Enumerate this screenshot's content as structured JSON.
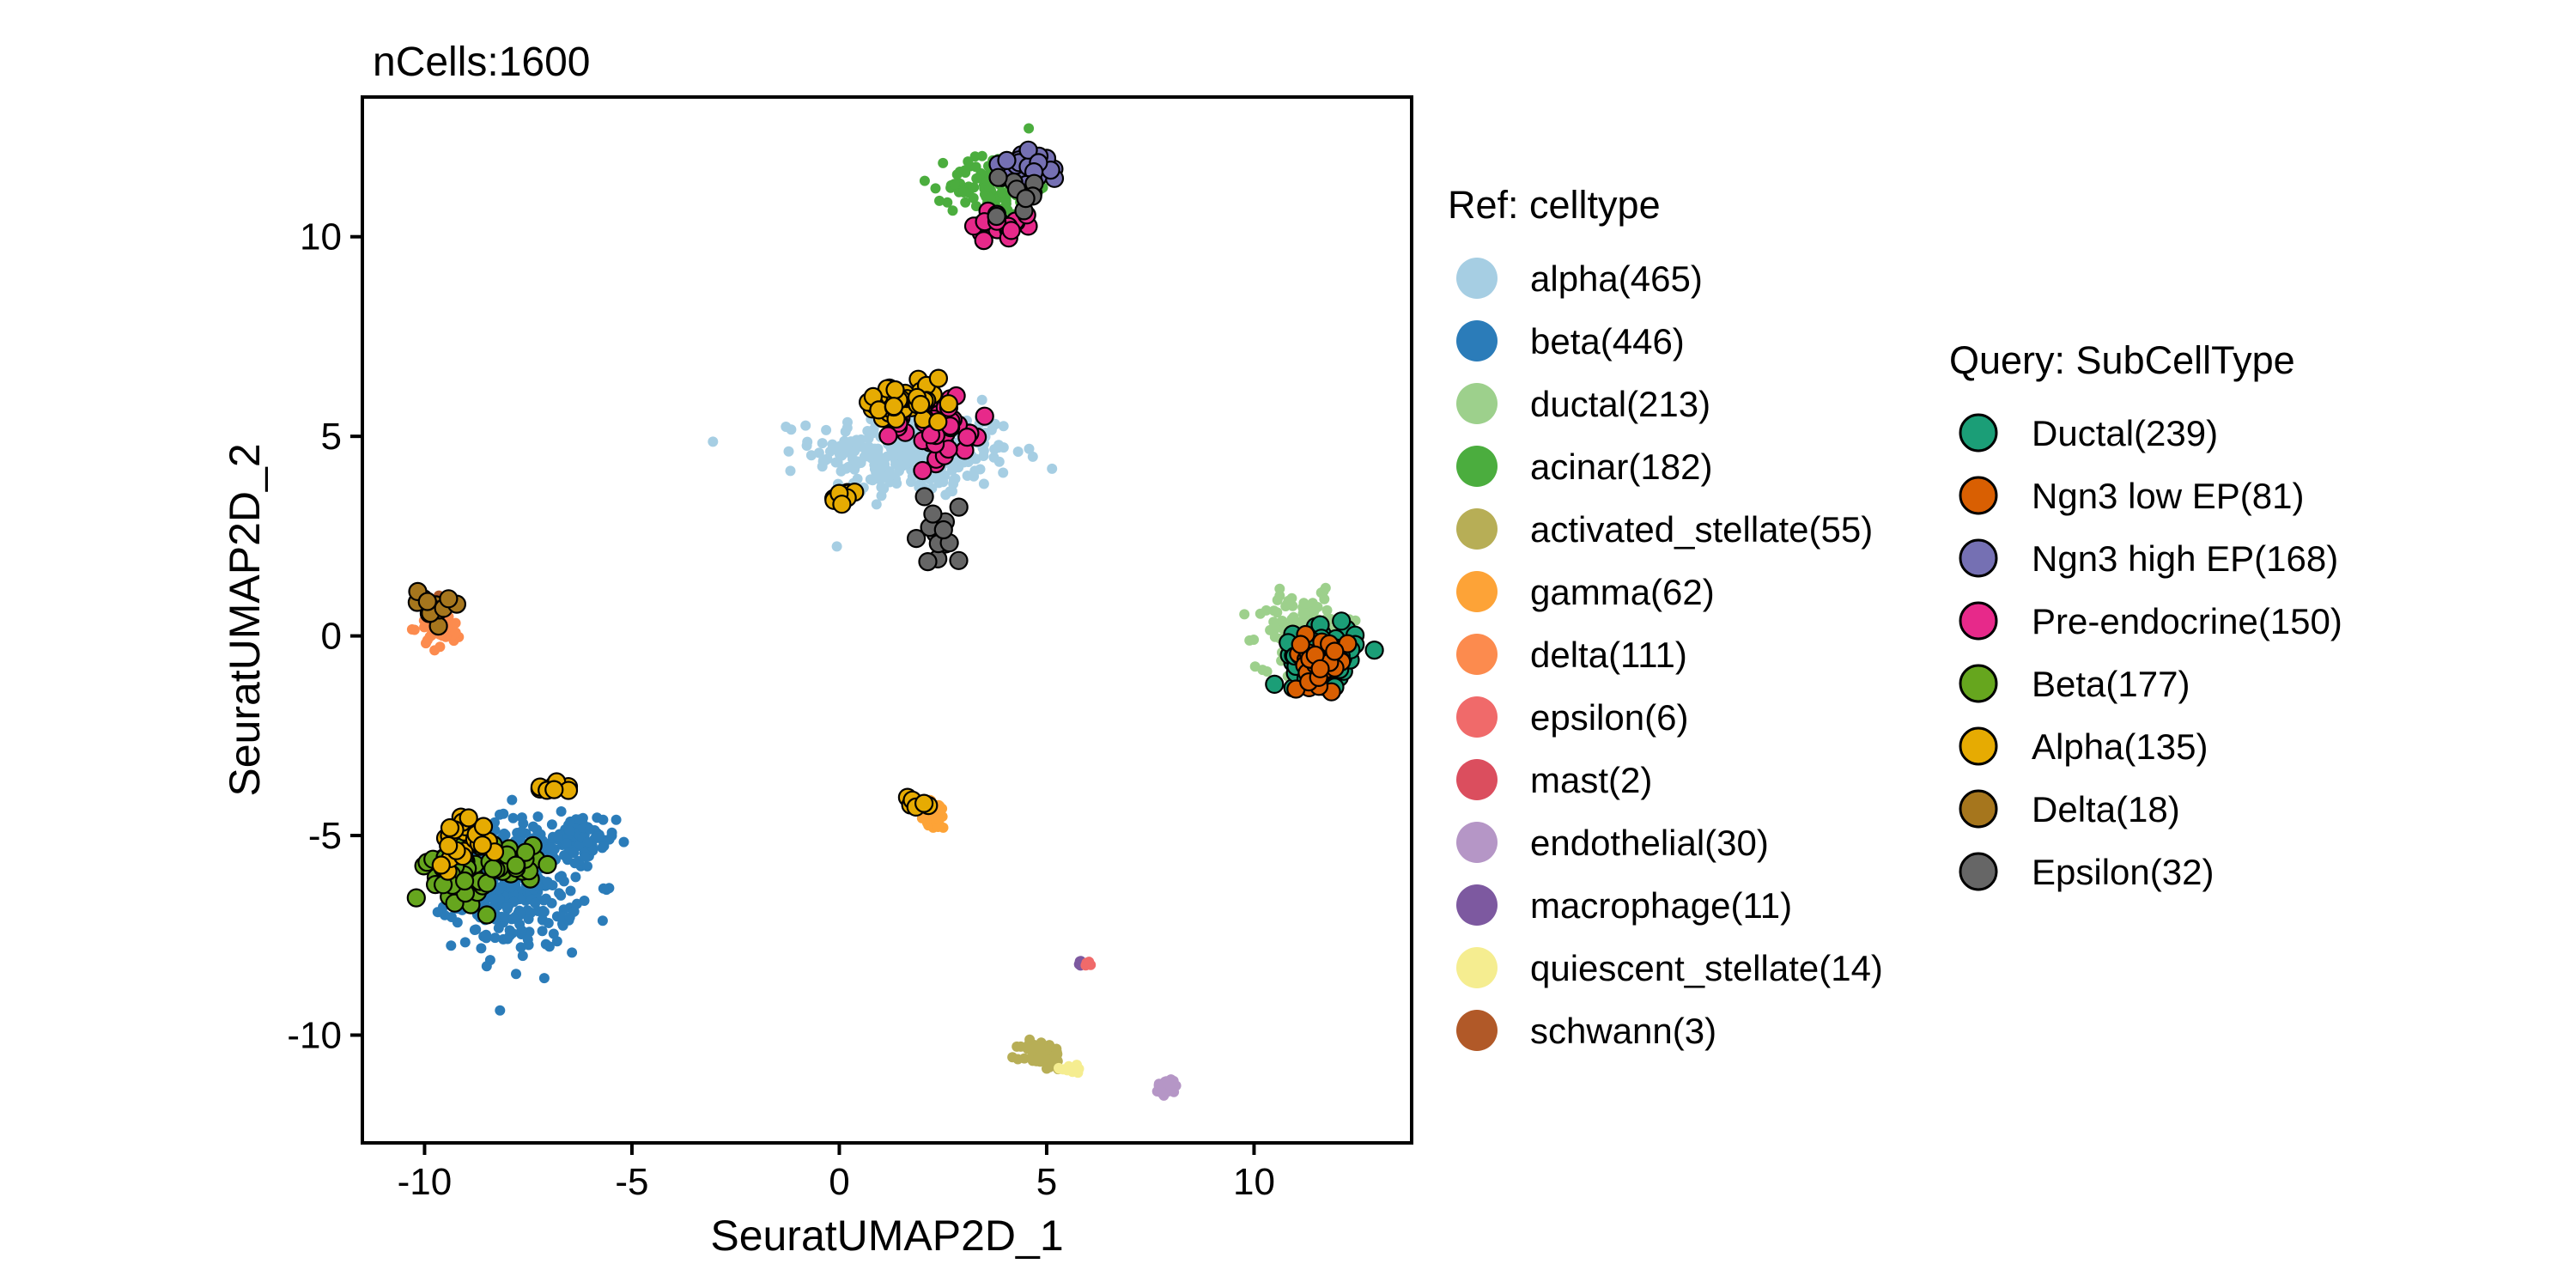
{
  "chart_data": {
    "type": "scatter",
    "title": "nCells:1600",
    "xlabel": "SeuratUMAP2D_1",
    "ylabel": "SeuratUMAP2D_2",
    "xlim": [
      -11.5,
      13.8
    ],
    "ylim": [
      -12.7,
      13.5
    ],
    "x_ticks": [
      -10,
      -5,
      0,
      5,
      10
    ],
    "y_ticks": [
      -10,
      -5,
      0,
      5,
      10
    ],
    "x_tick_labels": [
      "-10",
      "-5",
      "0",
      "5",
      "10"
    ],
    "y_tick_labels": [
      "-10",
      "-5",
      "0",
      "5",
      "10"
    ],
    "grid": false,
    "ref_legend": {
      "title": "Ref: celltype",
      "items": [
        {
          "label": "alpha(465)",
          "color": "#A6CEE3"
        },
        {
          "label": "beta(446)",
          "color": "#2B7CB9"
        },
        {
          "label": "ductal(213)",
          "color": "#9DD08C"
        },
        {
          "label": "acinar(182)",
          "color": "#4BAD3E"
        },
        {
          "label": "activated_stellate(55)",
          "color": "#B7AE56"
        },
        {
          "label": "gamma(62)",
          "color": "#FDA337"
        },
        {
          "label": "delta(111)",
          "color": "#FC8B4E"
        },
        {
          "label": "epsilon(6)",
          "color": "#F06A6A"
        },
        {
          "label": "mast(2)",
          "color": "#DB4E5E"
        },
        {
          "label": "endothelial(30)",
          "color": "#B596C6"
        },
        {
          "label": "macrophage(11)",
          "color": "#7D59A0"
        },
        {
          "label": "quiescent_stellate(14)",
          "color": "#F5ED90"
        },
        {
          "label": "schwann(3)",
          "color": "#B15928"
        }
      ]
    },
    "query_legend": {
      "title": "Query: SubCellType",
      "items": [
        {
          "label": "Ductal(239)",
          "color": "#1B9E77"
        },
        {
          "label": "Ngn3 low EP(81)",
          "color": "#D95F02"
        },
        {
          "label": "Ngn3 high EP(168)",
          "color": "#7570B3"
        },
        {
          "label": "Pre-endocrine(150)",
          "color": "#E7298A"
        },
        {
          "label": "Beta(177)",
          "color": "#66A61E"
        },
        {
          "label": "Alpha(135)",
          "color": "#E6AB02"
        },
        {
          "label": "Delta(18)",
          "color": "#A6761D"
        },
        {
          "label": "Epsilon(32)",
          "color": "#666666"
        }
      ]
    },
    "ref_clusters": [
      {
        "celltype": "alpha",
        "color": "#A6CEE3",
        "cx": 1.8,
        "cy": 4.6,
        "sx": 1.6,
        "sy": 0.75,
        "n": 330
      },
      {
        "celltype": "beta",
        "color": "#2B7CB9",
        "cx": -7.8,
        "cy": -6.2,
        "sx": 1.0,
        "sy": 1.1,
        "n": 330
      },
      {
        "celltype": "beta",
        "color": "#2B7CB9",
        "cx": -6.3,
        "cy": -5.2,
        "sx": 0.6,
        "sy": 0.5,
        "n": 60
      },
      {
        "celltype": "ductal",
        "color": "#9DD08C",
        "cx": 11.2,
        "cy": 0.1,
        "sx": 0.75,
        "sy": 0.6,
        "n": 150
      },
      {
        "celltype": "acinar",
        "color": "#4BAD3E",
        "cx": 3.7,
        "cy": 11.3,
        "sx": 0.7,
        "sy": 0.55,
        "n": 110
      },
      {
        "celltype": "activated_stellate",
        "color": "#B7AE56",
        "cx": 4.9,
        "cy": -10.5,
        "sx": 0.35,
        "sy": 0.25,
        "n": 45
      },
      {
        "celltype": "gamma",
        "color": "#FDA337",
        "cx": 2.3,
        "cy": -4.5,
        "sx": 0.25,
        "sy": 0.25,
        "n": 45
      },
      {
        "celltype": "delta",
        "color": "#FC8B4E",
        "cx": -9.6,
        "cy": 0.2,
        "sx": 0.35,
        "sy": 0.35,
        "n": 40
      },
      {
        "celltype": "endothelial",
        "color": "#B596C6",
        "cx": 7.9,
        "cy": -11.3,
        "sx": 0.18,
        "sy": 0.15,
        "n": 25
      },
      {
        "celltype": "macrophage",
        "color": "#7D59A0",
        "cx": 5.8,
        "cy": -8.2,
        "sx": 0.06,
        "sy": 0.06,
        "n": 6
      },
      {
        "celltype": "quiescent_stellate",
        "color": "#F5ED90",
        "cx": 5.6,
        "cy": -10.8,
        "sx": 0.25,
        "sy": 0.12,
        "n": 12
      },
      {
        "celltype": "epsilon",
        "color": "#F06A6A",
        "cx": 6.0,
        "cy": -8.2,
        "sx": 0.05,
        "sy": 0.05,
        "n": 4
      },
      {
        "celltype": "schwann",
        "color": "#B15928",
        "cx": -9.6,
        "cy": 1.0,
        "sx": 0.12,
        "sy": 0.12,
        "n": 3
      }
    ],
    "query_clusters": [
      {
        "subcelltype": "Ductal",
        "color": "#1B9E77",
        "cx": 11.7,
        "cy": -0.5,
        "sx": 0.5,
        "sy": 0.45,
        "n": 130
      },
      {
        "subcelltype": "Ngn3 low EP",
        "color": "#D95F02",
        "cx": 11.6,
        "cy": -0.6,
        "sx": 0.45,
        "sy": 0.4,
        "n": 35
      },
      {
        "subcelltype": "Ngn3 high EP",
        "color": "#7570B3",
        "cx": 4.5,
        "cy": 11.7,
        "sx": 0.4,
        "sy": 0.25,
        "n": 60
      },
      {
        "subcelltype": "Pre-endocrine",
        "color": "#E7298A",
        "cx": 2.3,
        "cy": 5.2,
        "sx": 0.9,
        "sy": 0.6,
        "n": 45
      },
      {
        "subcelltype": "Pre-endocrine",
        "color": "#E7298A",
        "cx": 4.0,
        "cy": 10.3,
        "sx": 0.5,
        "sy": 0.3,
        "n": 20
      },
      {
        "subcelltype": "Beta",
        "color": "#66A61E",
        "cx": -9.2,
        "cy": -5.8,
        "sx": 0.45,
        "sy": 0.55,
        "n": 70
      },
      {
        "subcelltype": "Beta",
        "color": "#66A61E",
        "cx": -7.9,
        "cy": -5.7,
        "sx": 0.4,
        "sy": 0.45,
        "n": 25
      },
      {
        "subcelltype": "Alpha",
        "color": "#E6AB02",
        "cx": 1.6,
        "cy": 5.8,
        "sx": 0.7,
        "sy": 0.35,
        "n": 45
      },
      {
        "subcelltype": "Alpha",
        "color": "#E6AB02",
        "cx": -9.0,
        "cy": -5.0,
        "sx": 0.5,
        "sy": 0.45,
        "n": 25
      },
      {
        "subcelltype": "Alpha",
        "color": "#E6AB02",
        "cx": 0.0,
        "cy": 3.4,
        "sx": 0.3,
        "sy": 0.15,
        "n": 8
      },
      {
        "subcelltype": "Alpha",
        "color": "#E6AB02",
        "cx": -6.8,
        "cy": -3.8,
        "sx": 0.3,
        "sy": 0.15,
        "n": 8
      },
      {
        "subcelltype": "Alpha",
        "color": "#E6AB02",
        "cx": 1.9,
        "cy": -4.2,
        "sx": 0.25,
        "sy": 0.15,
        "n": 6
      },
      {
        "subcelltype": "Delta",
        "color": "#A6761D",
        "cx": -9.8,
        "cy": 0.8,
        "sx": 0.3,
        "sy": 0.3,
        "n": 15
      },
      {
        "subcelltype": "Epsilon",
        "color": "#666666",
        "cx": 2.4,
        "cy": 2.6,
        "sx": 0.5,
        "sy": 0.5,
        "n": 14
      },
      {
        "subcelltype": "Epsilon",
        "color": "#666666",
        "cx": 4.2,
        "cy": 11.0,
        "sx": 0.5,
        "sy": 0.4,
        "n": 10
      }
    ]
  }
}
